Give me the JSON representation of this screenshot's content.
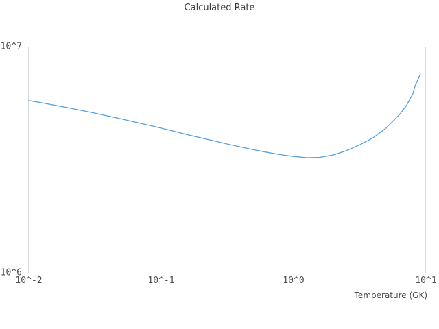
{
  "chart_data": {
    "type": "line",
    "title": "Calculated Rate",
    "xlabel": "Temperature (GK)",
    "ylabel": "",
    "x_scale": "log",
    "y_scale": "log",
    "x_range": [
      0.01,
      10
    ],
    "y_range": [
      1000000,
      10000000
    ],
    "grid": false,
    "legend": "none",
    "xticks": [
      {
        "value": 0.01,
        "label": "10^-2"
      },
      {
        "value": 0.1,
        "label": "10^-1"
      },
      {
        "value": 1,
        "label": "10^0"
      },
      {
        "value": 10,
        "label": "10^1"
      }
    ],
    "yticks": [
      {
        "value": 1000000,
        "label": "10^6"
      },
      {
        "value": 10000000,
        "label": "10^7"
      }
    ],
    "series": [
      {
        "name": "Calculated Rate",
        "color": "#55a0dc",
        "x": [
          0.01,
          0.0126,
          0.0158,
          0.02,
          0.0251,
          0.0316,
          0.0398,
          0.0501,
          0.0631,
          0.0794,
          0.1,
          0.126,
          0.158,
          0.2,
          0.251,
          0.316,
          0.398,
          0.501,
          0.631,
          0.794,
          1.0,
          1.26,
          1.58,
          2.0,
          2.51,
          3.16,
          3.98,
          5.01,
          6.31,
          7.08,
          7.94,
          8.32,
          9.08
        ],
        "y": [
          5770000,
          5640000,
          5500000,
          5360000,
          5220000,
          5080000,
          4930000,
          4790000,
          4640000,
          4500000,
          4360000,
          4220000,
          4080000,
          3950000,
          3830000,
          3710000,
          3600000,
          3500000,
          3410000,
          3330000,
          3270000,
          3230000,
          3240000,
          3320000,
          3470000,
          3680000,
          3950000,
          4370000,
          5010000,
          5460000,
          6170000,
          6760000,
          7570000
        ]
      }
    ]
  },
  "colors": {
    "background": "#ffffff",
    "plot_border": "#d9d9d9",
    "title_text": "#3b3b3b",
    "tick_text": "#4c4c4c",
    "line": "#55a0dc"
  }
}
